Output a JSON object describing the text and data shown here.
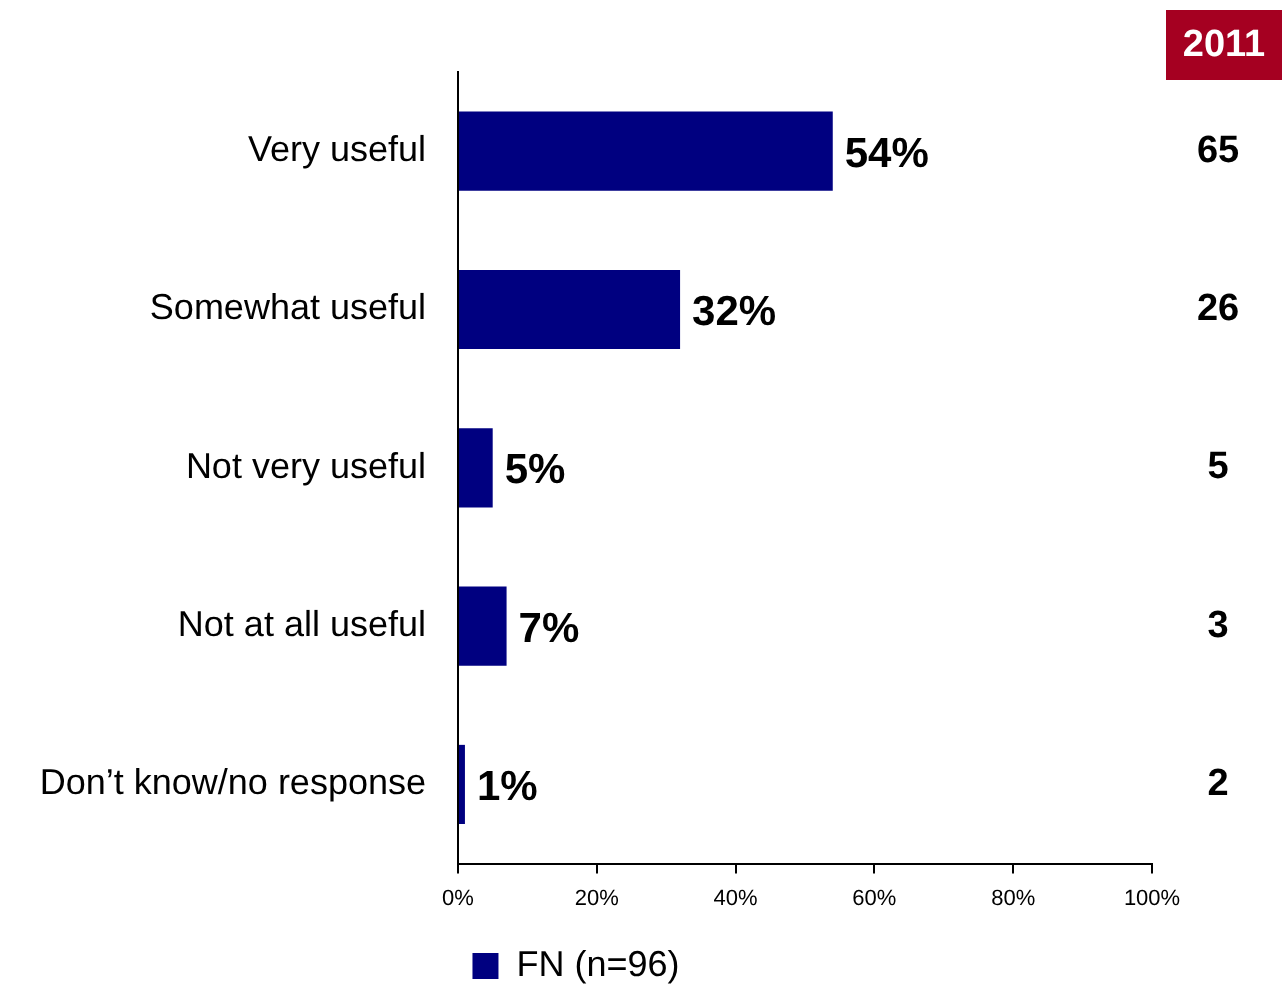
{
  "chart_data": {
    "type": "bar",
    "orientation": "horizontal",
    "categories": [
      "Very useful",
      "Somewhat useful",
      "Not very useful",
      "Not at all useful",
      "Don’t know/no response"
    ],
    "series": [
      {
        "name": "FN (n=96)",
        "color": "#000080",
        "values": [
          54,
          32,
          5,
          7,
          1
        ],
        "value_labels": [
          "54%",
          "32%",
          "5%",
          "7%",
          "1%"
        ]
      }
    ],
    "xlim": [
      0,
      100
    ],
    "xticks": [
      {
        "value": 0,
        "label": "0%"
      },
      {
        "value": 20,
        "label": "20%"
      },
      {
        "value": 40,
        "label": "40%"
      },
      {
        "value": 60,
        "label": "60%"
      },
      {
        "value": 80,
        "label": "80%"
      },
      {
        "value": 100,
        "label": "100%"
      }
    ],
    "legend": "bottom",
    "annotations": [
      "2011",
      "65",
      "26",
      "5",
      "3",
      "2"
    ]
  }
}
